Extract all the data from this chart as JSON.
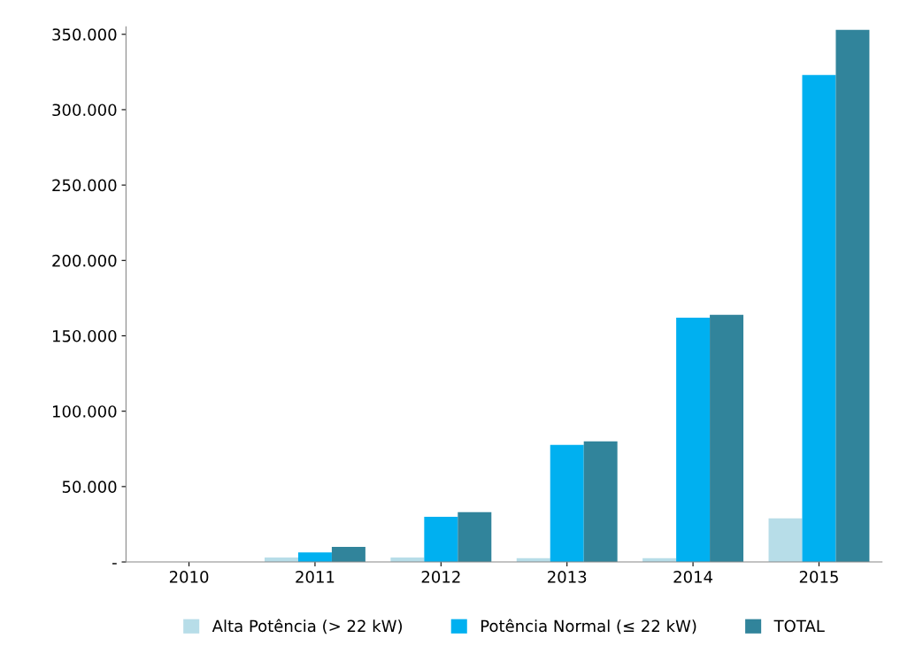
{
  "chart_data": {
    "type": "bar",
    "categories": [
      "2010",
      "2011",
      "2012",
      "2013",
      "2014",
      "2015"
    ],
    "series": [
      {
        "name": "Alta Potência (> 22 kW)",
        "color": "#b7dde8",
        "values": [
          0,
          3000,
          3000,
          2500,
          2500,
          29000
        ]
      },
      {
        "name": "Potência Normal (≤ 22 kW)",
        "color": "#00b0f0",
        "values": [
          0,
          6400,
          30000,
          77600,
          162000,
          323000
        ]
      },
      {
        "name": "TOTAL",
        "color": "#31849b",
        "values": [
          0,
          10000,
          33000,
          80000,
          164000,
          353000
        ]
      }
    ],
    "ylim": [
      0,
      355000
    ],
    "yticks": [
      {
        "value": 0,
        "label": "-"
      },
      {
        "value": 50000,
        "label": "50.000"
      },
      {
        "value": 100000,
        "label": "100.000"
      },
      {
        "value": 150000,
        "label": "150.000"
      },
      {
        "value": 200000,
        "label": "200.000"
      },
      {
        "value": 250000,
        "label": "250.000"
      },
      {
        "value": 300000,
        "label": "300.000"
      },
      {
        "value": 350000,
        "label": "350.000"
      }
    ],
    "grid": false,
    "legend": "bottom"
  }
}
